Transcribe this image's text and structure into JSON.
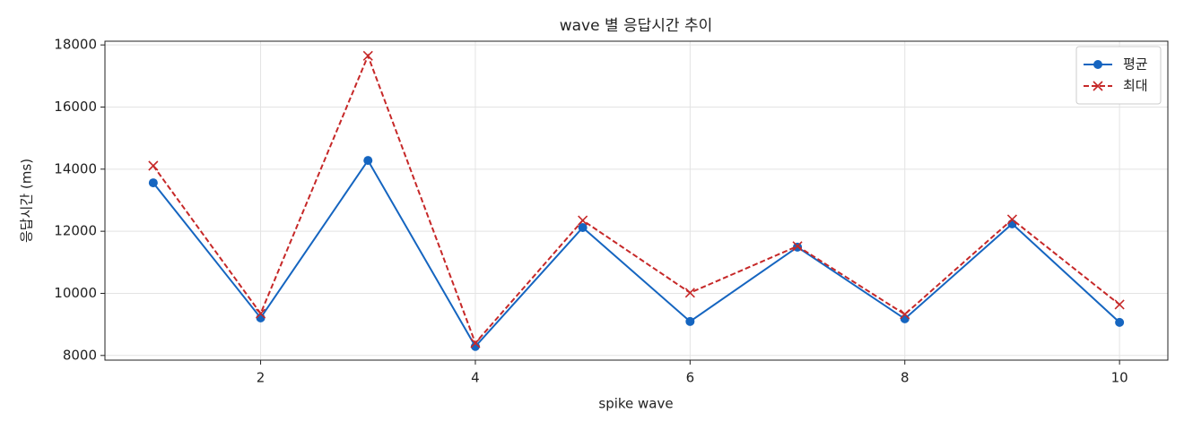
{
  "chart_data": {
    "type": "line",
    "title": "wave 별 응답시간 추이",
    "x_label": "spike wave",
    "y_label": "응답시간 (ms)",
    "x": [
      1,
      2,
      3,
      4,
      5,
      6,
      7,
      8,
      9,
      10
    ],
    "series": [
      {
        "name": "평균",
        "color": "#1565c0",
        "marker": "circle",
        "linestyle": "solid",
        "values": [
          13560,
          9210,
          14280,
          8290,
          12120,
          9095,
          11490,
          9180,
          12240,
          9065
        ]
      },
      {
        "name": "최대",
        "color": "#c62828",
        "marker": "x",
        "linestyle": "dashed",
        "values": [
          14110,
          9350,
          17650,
          8400,
          12350,
          10020,
          11520,
          9325,
          12380,
          9640
        ]
      }
    ],
    "xlim": [
      0.55,
      10.45
    ],
    "ylim": [
      7850,
      18120
    ],
    "xticks": [
      2,
      4,
      6,
      8,
      10
    ],
    "yticks": [
      8000,
      10000,
      12000,
      14000,
      16000,
      18000
    ],
    "grid": true,
    "legend": "upper right"
  }
}
